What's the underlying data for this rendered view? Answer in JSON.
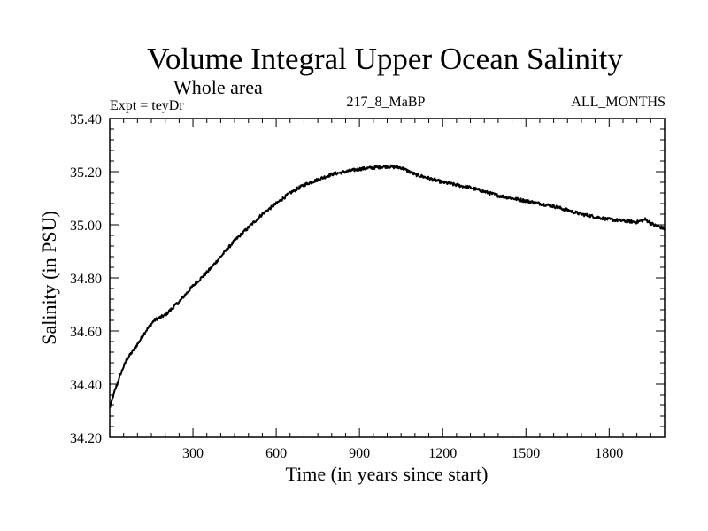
{
  "chart_data": {
    "type": "line",
    "title": "Volume Integral Upper Ocean Salinity",
    "subtitle": "Whole area",
    "annotations": {
      "left": "Expt = teyDr",
      "center": "217_8_MaBP",
      "right": "ALL_MONTHS"
    },
    "xlabel": "Time (in years since start)",
    "ylabel": "Salinity (in PSU)",
    "xlim": [
      0,
      2000
    ],
    "ylim": [
      34.2,
      35.4
    ],
    "x_ticks": [
      300,
      600,
      900,
      1200,
      1500,
      1800
    ],
    "x_tick_labels": [
      "300",
      "600",
      "900",
      "1200",
      "1500",
      "1800"
    ],
    "y_ticks": [
      34.2,
      34.4,
      34.6,
      34.8,
      35.0,
      35.2,
      35.4
    ],
    "y_tick_labels": [
      "34.20",
      "34.40",
      "34.60",
      "34.80",
      "35.00",
      "35.20",
      "35.40"
    ],
    "grid": false,
    "series": [
      {
        "name": "Salinity",
        "color": "#000000",
        "x": [
          0,
          20,
          40,
          60,
          80,
          100,
          130,
          160,
          200,
          250,
          300,
          350,
          400,
          450,
          500,
          550,
          600,
          650,
          700,
          750,
          800,
          850,
          900,
          950,
          1000,
          1050,
          1100,
          1150,
          1200,
          1250,
          1300,
          1350,
          1400,
          1450,
          1500,
          1550,
          1600,
          1650,
          1700,
          1750,
          1800,
          1850,
          1900,
          1930,
          1960,
          2000
        ],
        "values": [
          34.31,
          34.38,
          34.44,
          34.49,
          34.52,
          34.55,
          34.6,
          34.64,
          34.66,
          34.71,
          34.77,
          34.82,
          34.88,
          34.94,
          34.99,
          35.04,
          35.08,
          35.12,
          35.15,
          35.17,
          35.19,
          35.2,
          35.21,
          35.215,
          35.22,
          35.215,
          35.19,
          35.175,
          35.16,
          35.15,
          35.14,
          35.125,
          35.11,
          35.1,
          35.09,
          35.08,
          35.07,
          35.055,
          35.04,
          35.03,
          35.02,
          35.015,
          35.01,
          35.02,
          35.0,
          34.985
        ]
      }
    ]
  }
}
